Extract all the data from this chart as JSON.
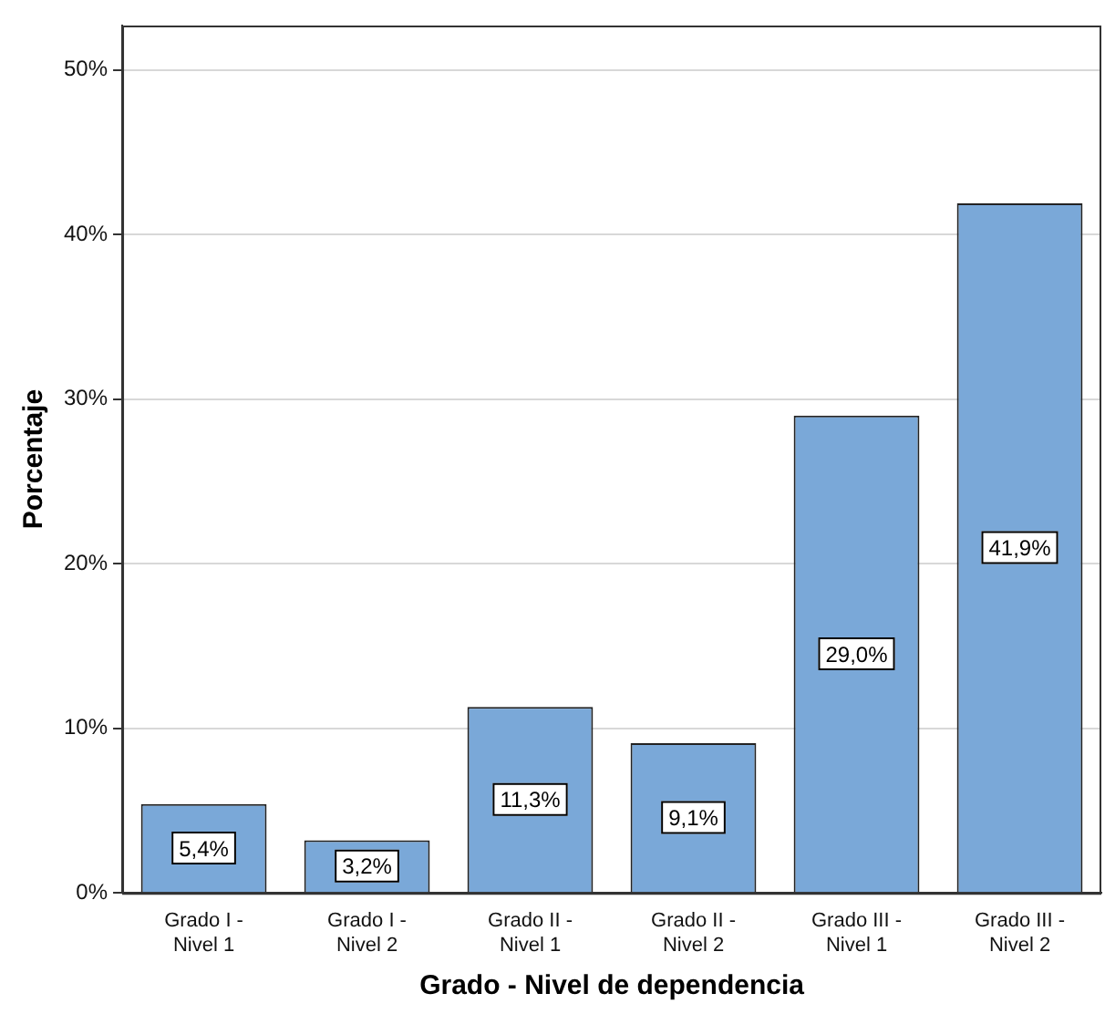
{
  "chart_data": {
    "type": "bar",
    "xlabel": "Grado - Nivel de dependencia",
    "ylabel": "Porcentaje",
    "categories": [
      "Grado I -\nNivel 1",
      "Grado I -\nNivel 2",
      "Grado II -\nNivel 1",
      "Grado II -\nNivel 2",
      "Grado III -\nNivel 1",
      "Grado III -\nNivel 2"
    ],
    "values": [
      5.4,
      3.2,
      11.3,
      9.1,
      29.0,
      41.9
    ],
    "value_labels": [
      "5,4%",
      "3,2%",
      "11,3%",
      "9,1%",
      "29,0%",
      "41,9%"
    ],
    "color": "#7aa8d8",
    "ylim": [
      0,
      52.7
    ],
    "yticks": [
      {
        "value": 0,
        "label": "0%"
      },
      {
        "value": 10,
        "label": "10%"
      },
      {
        "value": 20,
        "label": "20%"
      },
      {
        "value": 30,
        "label": "30%"
      },
      {
        "value": 40,
        "label": "40%"
      },
      {
        "value": 50,
        "label": "50%"
      }
    ],
    "grid": "y",
    "legend": false
  }
}
